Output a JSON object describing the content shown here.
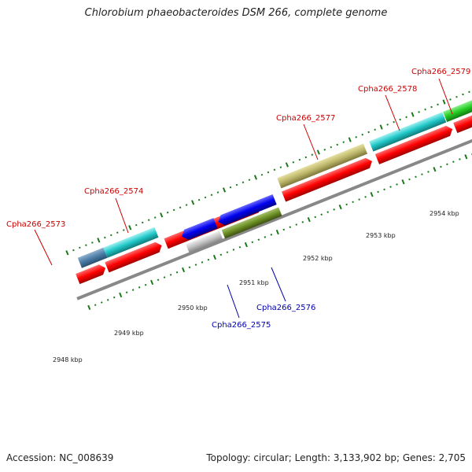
{
  "title": "Chlorobium phaeobacteroides DSM 266, complete genome",
  "accession_label": "Accession: NC_008639",
  "topology_label": "Topology: circular; Length: 3,133,902 bp; Genes: 2,705",
  "colors": {
    "forward_label": "#cc0000",
    "reverse_label": "#0000aa",
    "backbone": "#808080",
    "tick": "#1a7a1a"
  },
  "kbp_labels": [
    "2948 kbp",
    "2949 kbp",
    "2950 kbp",
    "2951 kbp",
    "2952 kbp",
    "2953 kbp",
    "2954 kbp"
  ],
  "genes": [
    {
      "id": "Cpha266_2573",
      "strand": "forward",
      "label": "Cpha266_2573",
      "color": "#33cccc"
    },
    {
      "id": "Cpha266_2574",
      "strand": "forward",
      "label": "Cpha266_2574",
      "color": "#ff1a1a"
    },
    {
      "id": "Cpha266_2575",
      "strand": "reverse",
      "label": "Cpha266_2575",
      "color": "#bbbbbb"
    },
    {
      "id": "Cpha266_2576",
      "strand": "reverse",
      "label": "Cpha266_2576",
      "color": "#6b8e23"
    },
    {
      "id": "Cpha266_2577",
      "strand": "forward",
      "label": "Cpha266_2577",
      "color": "#bdb76b"
    },
    {
      "id": "Cpha266_2578",
      "strand": "forward",
      "label": "Cpha266_2578",
      "color": "#33cccc"
    },
    {
      "id": "Cpha266_2579",
      "strand": "forward",
      "label": "Cpha266_2579",
      "color": "#33cc33"
    }
  ]
}
